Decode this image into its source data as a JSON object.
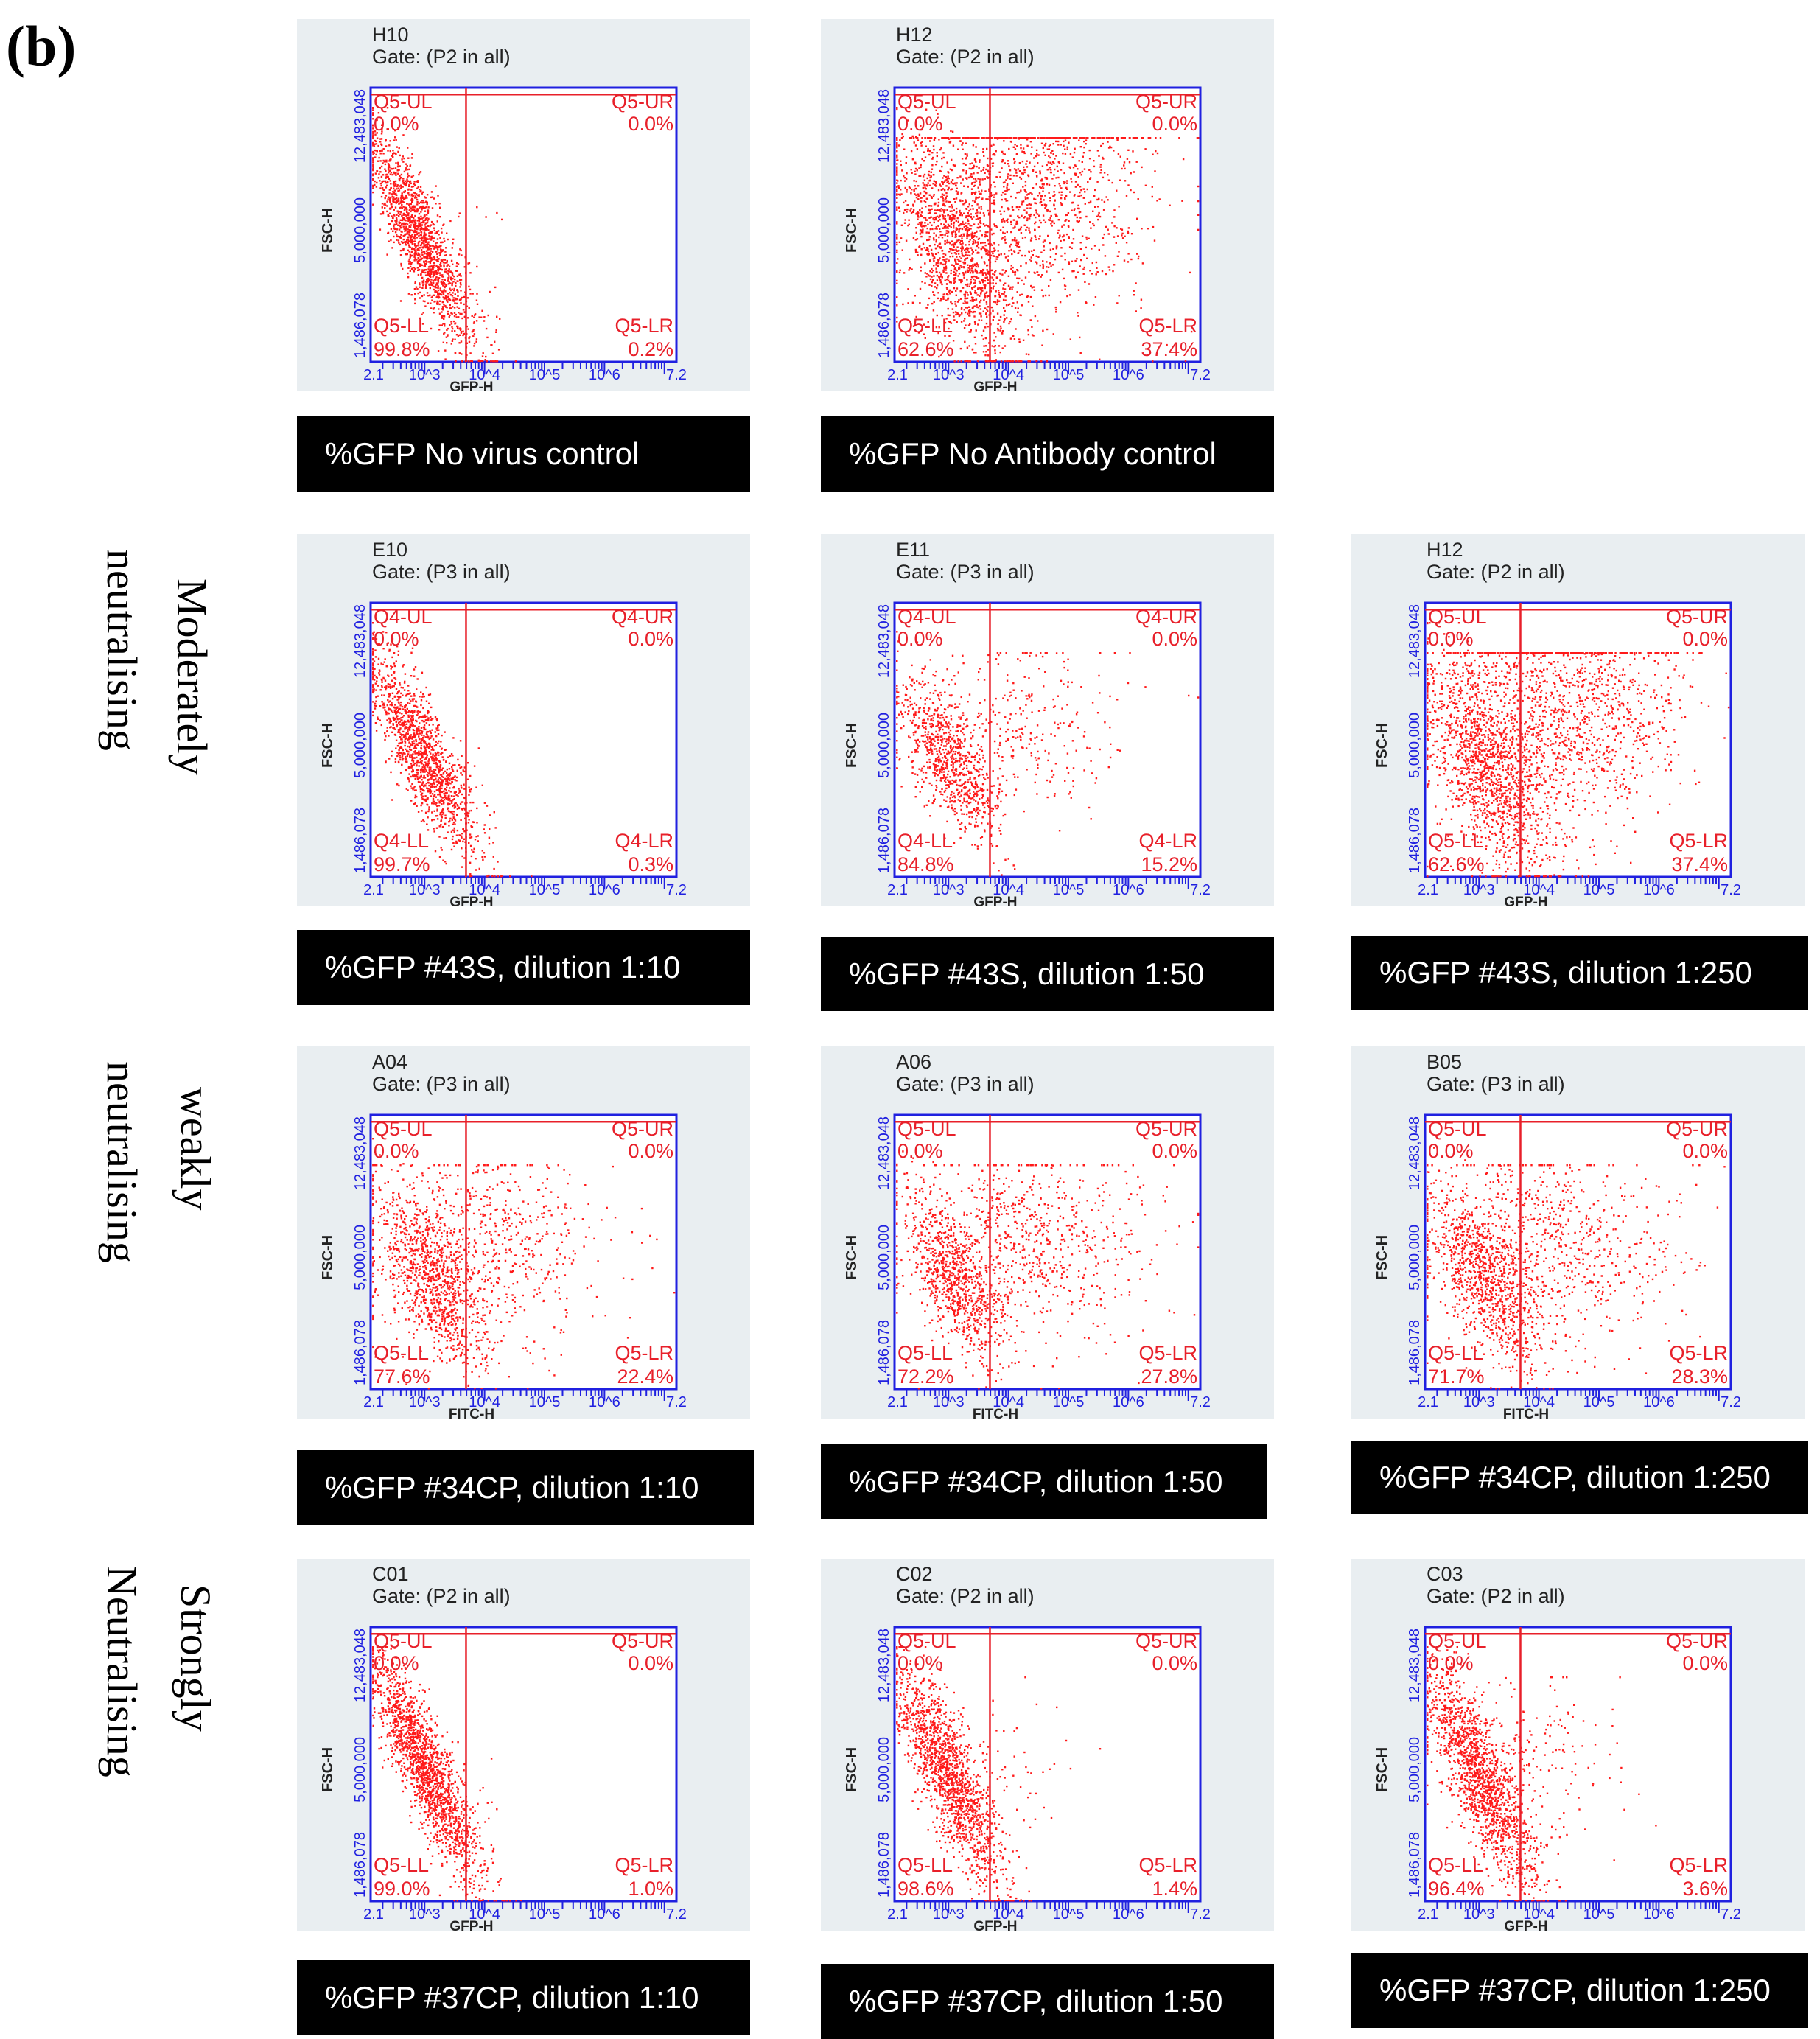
{
  "figure_label": "(b)",
  "colors": {
    "points": "#ff1a1a",
    "quad_text": "#e8202a",
    "axis": "#2020e0",
    "panel_bg": "#e9eef1",
    "caption_bg": "#000000",
    "caption_text": "#ffffff"
  },
  "row_labels": [
    {
      "line1": "Moderately",
      "line2": "neutralising"
    },
    {
      "line1": "weakly",
      "line2": "neutralising"
    },
    {
      "line1": "Strongly",
      "line2": "Neutralising"
    }
  ],
  "chart_data": [
    {
      "type": "scatter",
      "well": "H10",
      "gate": "Gate: (P2 in all)",
      "quadrant_prefix": "Q5",
      "ul": "0.0%",
      "ur": "0.0%",
      "ll": "99.8%",
      "lr": "0.2%",
      "xlabel": "GFP-H",
      "ylabel": "FSC-H",
      "yticks": [
        "1,486,078",
        "5,000,000",
        "12,483,048"
      ],
      "xticks": [
        "2.1",
        "10^3",
        "10^4",
        "10^5",
        "10^6",
        "7.2"
      ],
      "xlim": [
        2.1,
        7.2
      ],
      "ylim": [
        1486078,
        12483048
      ],
      "caption": "%GFP No virus control"
    },
    {
      "type": "scatter",
      "well": "H12",
      "gate": "Gate: (P2 in all)",
      "quadrant_prefix": "Q5",
      "ul": "0.0%",
      "ur": "0.0%",
      "ll": "62.6%",
      "lr": "37.4%",
      "xlabel": "GFP-H",
      "ylabel": "FSC-H",
      "yticks": [
        "1,486,078",
        "5,000,000",
        "12,483,048"
      ],
      "xticks": [
        "2.1",
        "10^3",
        "10^4",
        "10^5",
        "10^6",
        "7.2"
      ],
      "xlim": [
        2.1,
        7.2
      ],
      "ylim": [
        1486078,
        12483048
      ],
      "caption": "%GFP No Antibody control"
    },
    {
      "type": "scatter",
      "well": "E10",
      "gate": "Gate: (P3 in all)",
      "quadrant_prefix": "Q4",
      "ul": "0.0%",
      "ur": "0.0%",
      "ll": "99.7%",
      "lr": "0.3%",
      "xlabel": "GFP-H",
      "ylabel": "FSC-H",
      "yticks": [
        "1,486,078",
        "5,000,000",
        "12,483,048"
      ],
      "xticks": [
        "2.1",
        "10^3",
        "10^4",
        "10^5",
        "10^6",
        "7.2"
      ],
      "xlim": [
        2.1,
        7.2
      ],
      "ylim": [
        1486078,
        12483048
      ],
      "caption": "%GFP #43S, dilution 1:10"
    },
    {
      "type": "scatter",
      "well": "E11",
      "gate": "Gate: (P3 in all)",
      "quadrant_prefix": "Q4",
      "ul": "0.0%",
      "ur": "0.0%",
      "ll": "84.8%",
      "lr": "15.2%",
      "xlabel": "GFP-H",
      "ylabel": "FSC-H",
      "yticks": [
        "1,486,078",
        "5,000,000",
        "12,483,048"
      ],
      "xticks": [
        "2.1",
        "10^3",
        "10^4",
        "10^5",
        "10^6",
        "7.2"
      ],
      "xlim": [
        2.1,
        7.2
      ],
      "ylim": [
        1486078,
        12483048
      ],
      "caption": "%GFP #43S, dilution 1:50"
    },
    {
      "type": "scatter",
      "well": "H12",
      "gate": "Gate: (P2 in all)",
      "quadrant_prefix": "Q5",
      "ul": "0.0%",
      "ur": "0.0%",
      "ll": "62.6%",
      "lr": "37.4%",
      "xlabel": "GFP-H",
      "ylabel": "FSC-H",
      "yticks": [
        "1,486,078",
        "5,000,000",
        "12,483,048"
      ],
      "xticks": [
        "2.1",
        "10^3",
        "10^4",
        "10^5",
        "10^6",
        "7.2"
      ],
      "xlim": [
        2.1,
        7.2
      ],
      "ylim": [
        1486078,
        12483048
      ],
      "caption": "%GFP #43S, dilution 1:250"
    },
    {
      "type": "scatter",
      "well": "A04",
      "gate": "Gate: (P3 in all)",
      "quadrant_prefix": "Q5",
      "ul": "0.0%",
      "ur": "0.0%",
      "ll": "77.6%",
      "lr": "22.4%",
      "xlabel": "FITC-H",
      "ylabel": "FSC-H",
      "yticks": [
        "1,486,078",
        "5,000,000",
        "12,483,048"
      ],
      "xticks": [
        "2.1",
        "10^3",
        "10^4",
        "10^5",
        "10^6",
        "7.2"
      ],
      "xlim": [
        2.1,
        7.2
      ],
      "ylim": [
        1486078,
        12483048
      ],
      "caption": "%GFP #34CP, dilution 1:10"
    },
    {
      "type": "scatter",
      "well": "A06",
      "gate": "Gate: (P3 in all)",
      "quadrant_prefix": "Q5",
      "ul": "0.0%",
      "ur": "0.0%",
      "ll": "72.2%",
      "lr": "27.8%",
      "xlabel": "FITC-H",
      "ylabel": "FSC-H",
      "yticks": [
        "1,486,078",
        "5,000,000",
        "12,483,048"
      ],
      "xticks": [
        "2.1",
        "10^3",
        "10^4",
        "10^5",
        "10^6",
        "7.2"
      ],
      "xlim": [
        2.1,
        7.2
      ],
      "ylim": [
        1486078,
        12483048
      ],
      "caption": "%GFP #34CP, dilution 1:50"
    },
    {
      "type": "scatter",
      "well": "B05",
      "gate": "Gate: (P3 in all)",
      "quadrant_prefix": "Q5",
      "ul": "0.0%",
      "ur": "0.0%",
      "ll": "71.7%",
      "lr": "28.3%",
      "xlabel": "FITC-H",
      "ylabel": "FSC-H",
      "yticks": [
        "1,486,078",
        "5,000,000",
        "12,483,048"
      ],
      "xticks": [
        "2.1",
        "10^3",
        "10^4",
        "10^5",
        "10^6",
        "7.2"
      ],
      "xlim": [
        2.1,
        7.2
      ],
      "ylim": [
        1486078,
        12483048
      ],
      "caption": "%GFP #34CP, dilution 1:250"
    },
    {
      "type": "scatter",
      "well": "C01",
      "gate": "Gate: (P2 in all)",
      "quadrant_prefix": "Q5",
      "ul": "0.0%",
      "ur": "0.0%",
      "ll": "99.0%",
      "lr": "1.0%",
      "xlabel": "GFP-H",
      "ylabel": "FSC-H",
      "yticks": [
        "1,486,078",
        "5,000,000",
        "12,483,048"
      ],
      "xticks": [
        "2.1",
        "10^3",
        "10^4",
        "10^5",
        "10^6",
        "7.2"
      ],
      "xlim": [
        2.1,
        7.2
      ],
      "ylim": [
        1486078,
        12483048
      ],
      "caption": "%GFP #37CP, dilution 1:10"
    },
    {
      "type": "scatter",
      "well": "C02",
      "gate": "Gate: (P2 in all)",
      "quadrant_prefix": "Q5",
      "ul": "0.0%",
      "ur": "0.0%",
      "ll": "98.6%",
      "lr": "1.4%",
      "xlabel": "GFP-H",
      "ylabel": "FSC-H",
      "yticks": [
        "1,486,078",
        "5,000,000",
        "12,483,048"
      ],
      "xticks": [
        "2.1",
        "10^3",
        "10^4",
        "10^5",
        "10^6",
        "7.2"
      ],
      "xlim": [
        2.1,
        7.2
      ],
      "ylim": [
        1486078,
        12483048
      ],
      "caption": "%GFP #37CP, dilution 1:50"
    },
    {
      "type": "scatter",
      "well": "C03",
      "gate": "Gate: (P2 in all)",
      "quadrant_prefix": "Q5",
      "ul": "0.0%",
      "ur": "0.0%",
      "ll": "96.4%",
      "lr": "3.6%",
      "xlabel": "GFP-H",
      "ylabel": "FSC-H",
      "yticks": [
        "1,486,078",
        "5,000,000",
        "12,483,048"
      ],
      "xticks": [
        "2.1",
        "10^3",
        "10^4",
        "10^5",
        "10^6",
        "7.2"
      ],
      "xlim": [
        2.1,
        7.2
      ],
      "ylim": [
        1486078,
        12483048
      ],
      "caption": "%GFP #37CP, dilution 1:250"
    }
  ]
}
